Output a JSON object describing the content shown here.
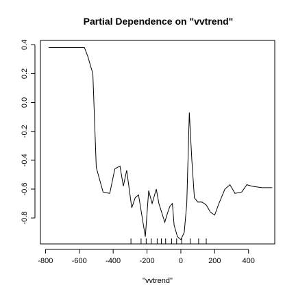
{
  "chart_data": {
    "type": "line",
    "title": "Partial Dependence on \"vvtrend\"",
    "xlabel": "\"vvtrend\"",
    "ylabel": "",
    "xlim": [
      -830,
      555
    ],
    "ylim": [
      -0.98,
      0.43
    ],
    "xticks": [
      -800,
      -600,
      -400,
      -200,
      0,
      200,
      400
    ],
    "yticks": [
      -0.8,
      -0.6,
      -0.4,
      -0.2,
      0.0,
      0.2,
      0.4
    ],
    "xtick_labels": [
      "-800",
      "-600",
      "-400",
      "-200",
      "0",
      "200",
      "400"
    ],
    "ytick_labels": [
      "-0.8",
      "-0.6",
      "-0.4",
      "-0.2",
      "0.0",
      "0.2",
      "0.4"
    ],
    "grid": false,
    "legend": "none",
    "series": [
      {
        "x": [
          -780,
          -610,
          -570,
          -550,
          -520,
          -500,
          -460,
          -420,
          -390,
          -360,
          -340,
          -320,
          -290,
          -270,
          -250,
          -210,
          -190,
          -170,
          -145,
          -130,
          -95,
          -80,
          -65,
          -50,
          -40,
          -20,
          0,
          20,
          35,
          50,
          65,
          80,
          100,
          125,
          150,
          175,
          200,
          225,
          260,
          290,
          320,
          360,
          390,
          420,
          480,
          540
        ],
        "y": [
          0.38,
          0.38,
          0.38,
          0.32,
          0.2,
          -0.45,
          -0.62,
          -0.63,
          -0.46,
          -0.44,
          -0.58,
          -0.47,
          -0.73,
          -0.66,
          -0.64,
          -0.93,
          -0.61,
          -0.7,
          -0.6,
          -0.7,
          -0.83,
          -0.77,
          -0.72,
          -0.7,
          -0.85,
          -0.93,
          -0.95,
          -0.9,
          -0.7,
          -0.07,
          -0.4,
          -0.66,
          -0.69,
          -0.69,
          -0.71,
          -0.76,
          -0.78,
          -0.7,
          -0.6,
          -0.57,
          -0.63,
          -0.62,
          -0.57,
          -0.58,
          -0.59,
          -0.59
        ]
      }
    ],
    "rug_x": [
      -295,
      -235,
      -205,
      -175,
      -140,
      -115,
      -90,
      -55,
      -25,
      5,
      55,
      105,
      150
    ]
  }
}
